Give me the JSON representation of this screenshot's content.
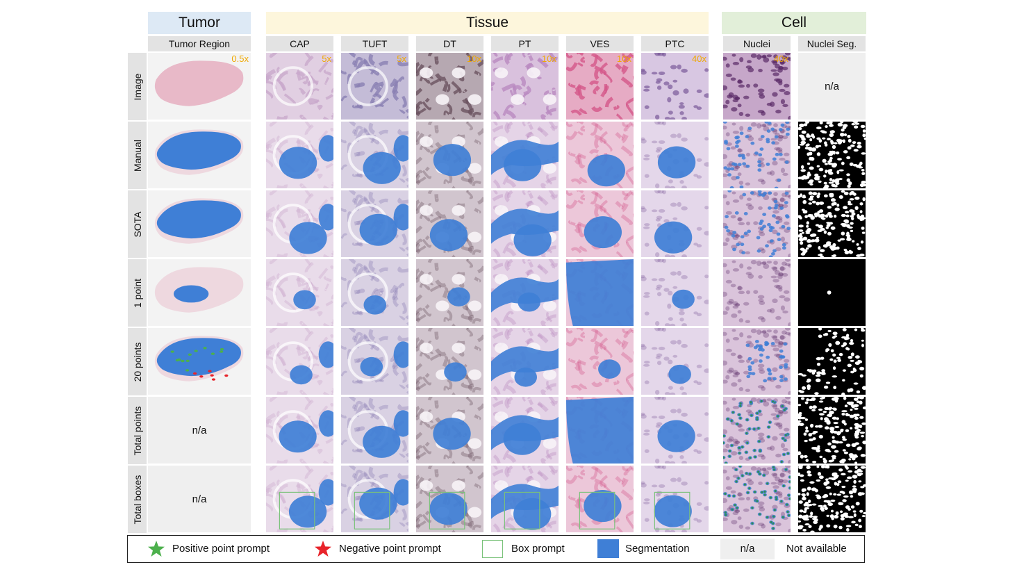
{
  "groups": [
    {
      "label": "Tumor",
      "color": "#dde9f5"
    },
    {
      "label": "Tissue",
      "color": "#fdf6dc"
    },
    {
      "label": "Cell",
      "color": "#e2efd9"
    }
  ],
  "columns": [
    {
      "label": "Tumor Region",
      "magnification": "0.5x",
      "kind": "region",
      "color": "#e8b9c8"
    },
    {
      "label": "CAP",
      "magnification": "5x",
      "kind": "glom",
      "color": "#c9a9cc"
    },
    {
      "label": "TUFT",
      "magnification": "5x",
      "kind": "glom",
      "color": "#8a7fb3"
    },
    {
      "label": "DT",
      "magnification": "10x",
      "kind": "tubule",
      "color": "#6b5360"
    },
    {
      "label": "PT",
      "magnification": "10x",
      "kind": "tubule",
      "color": "#b98ac0"
    },
    {
      "label": "VES",
      "magnification": "10x",
      "kind": "vessel",
      "color": "#d4588a"
    },
    {
      "label": "PTC",
      "magnification": "40x",
      "kind": "cells",
      "color": "#b596cd"
    },
    {
      "label": "Nuclei",
      "magnification": "40x",
      "kind": "nuclei",
      "color": "#8e4f94"
    },
    {
      "label": "Nuclei Seg.",
      "magnification": "",
      "kind": "mask",
      "color": "#000000"
    }
  ],
  "rows": [
    "Image",
    "Manual",
    "SOTA",
    "1 point",
    "20 points",
    "Total points",
    "Total boxes"
  ],
  "not_available_label": "n/a",
  "not_available_cells": [
    "0-8",
    "5-0",
    "6-0"
  ],
  "legend": {
    "positive": "Positive point prompt",
    "negative": "Negative point prompt",
    "box": "Box prompt",
    "segmentation": "Segmentation",
    "na_swatch": "n/a",
    "na_label": "Not available"
  },
  "colors": {
    "segmentation": "#3f7fd6",
    "positive": "#4cb04c",
    "negative": "#e8232a",
    "box": "#7ac27a",
    "magnification": "#f0a800",
    "na_bg": "#efefef"
  }
}
